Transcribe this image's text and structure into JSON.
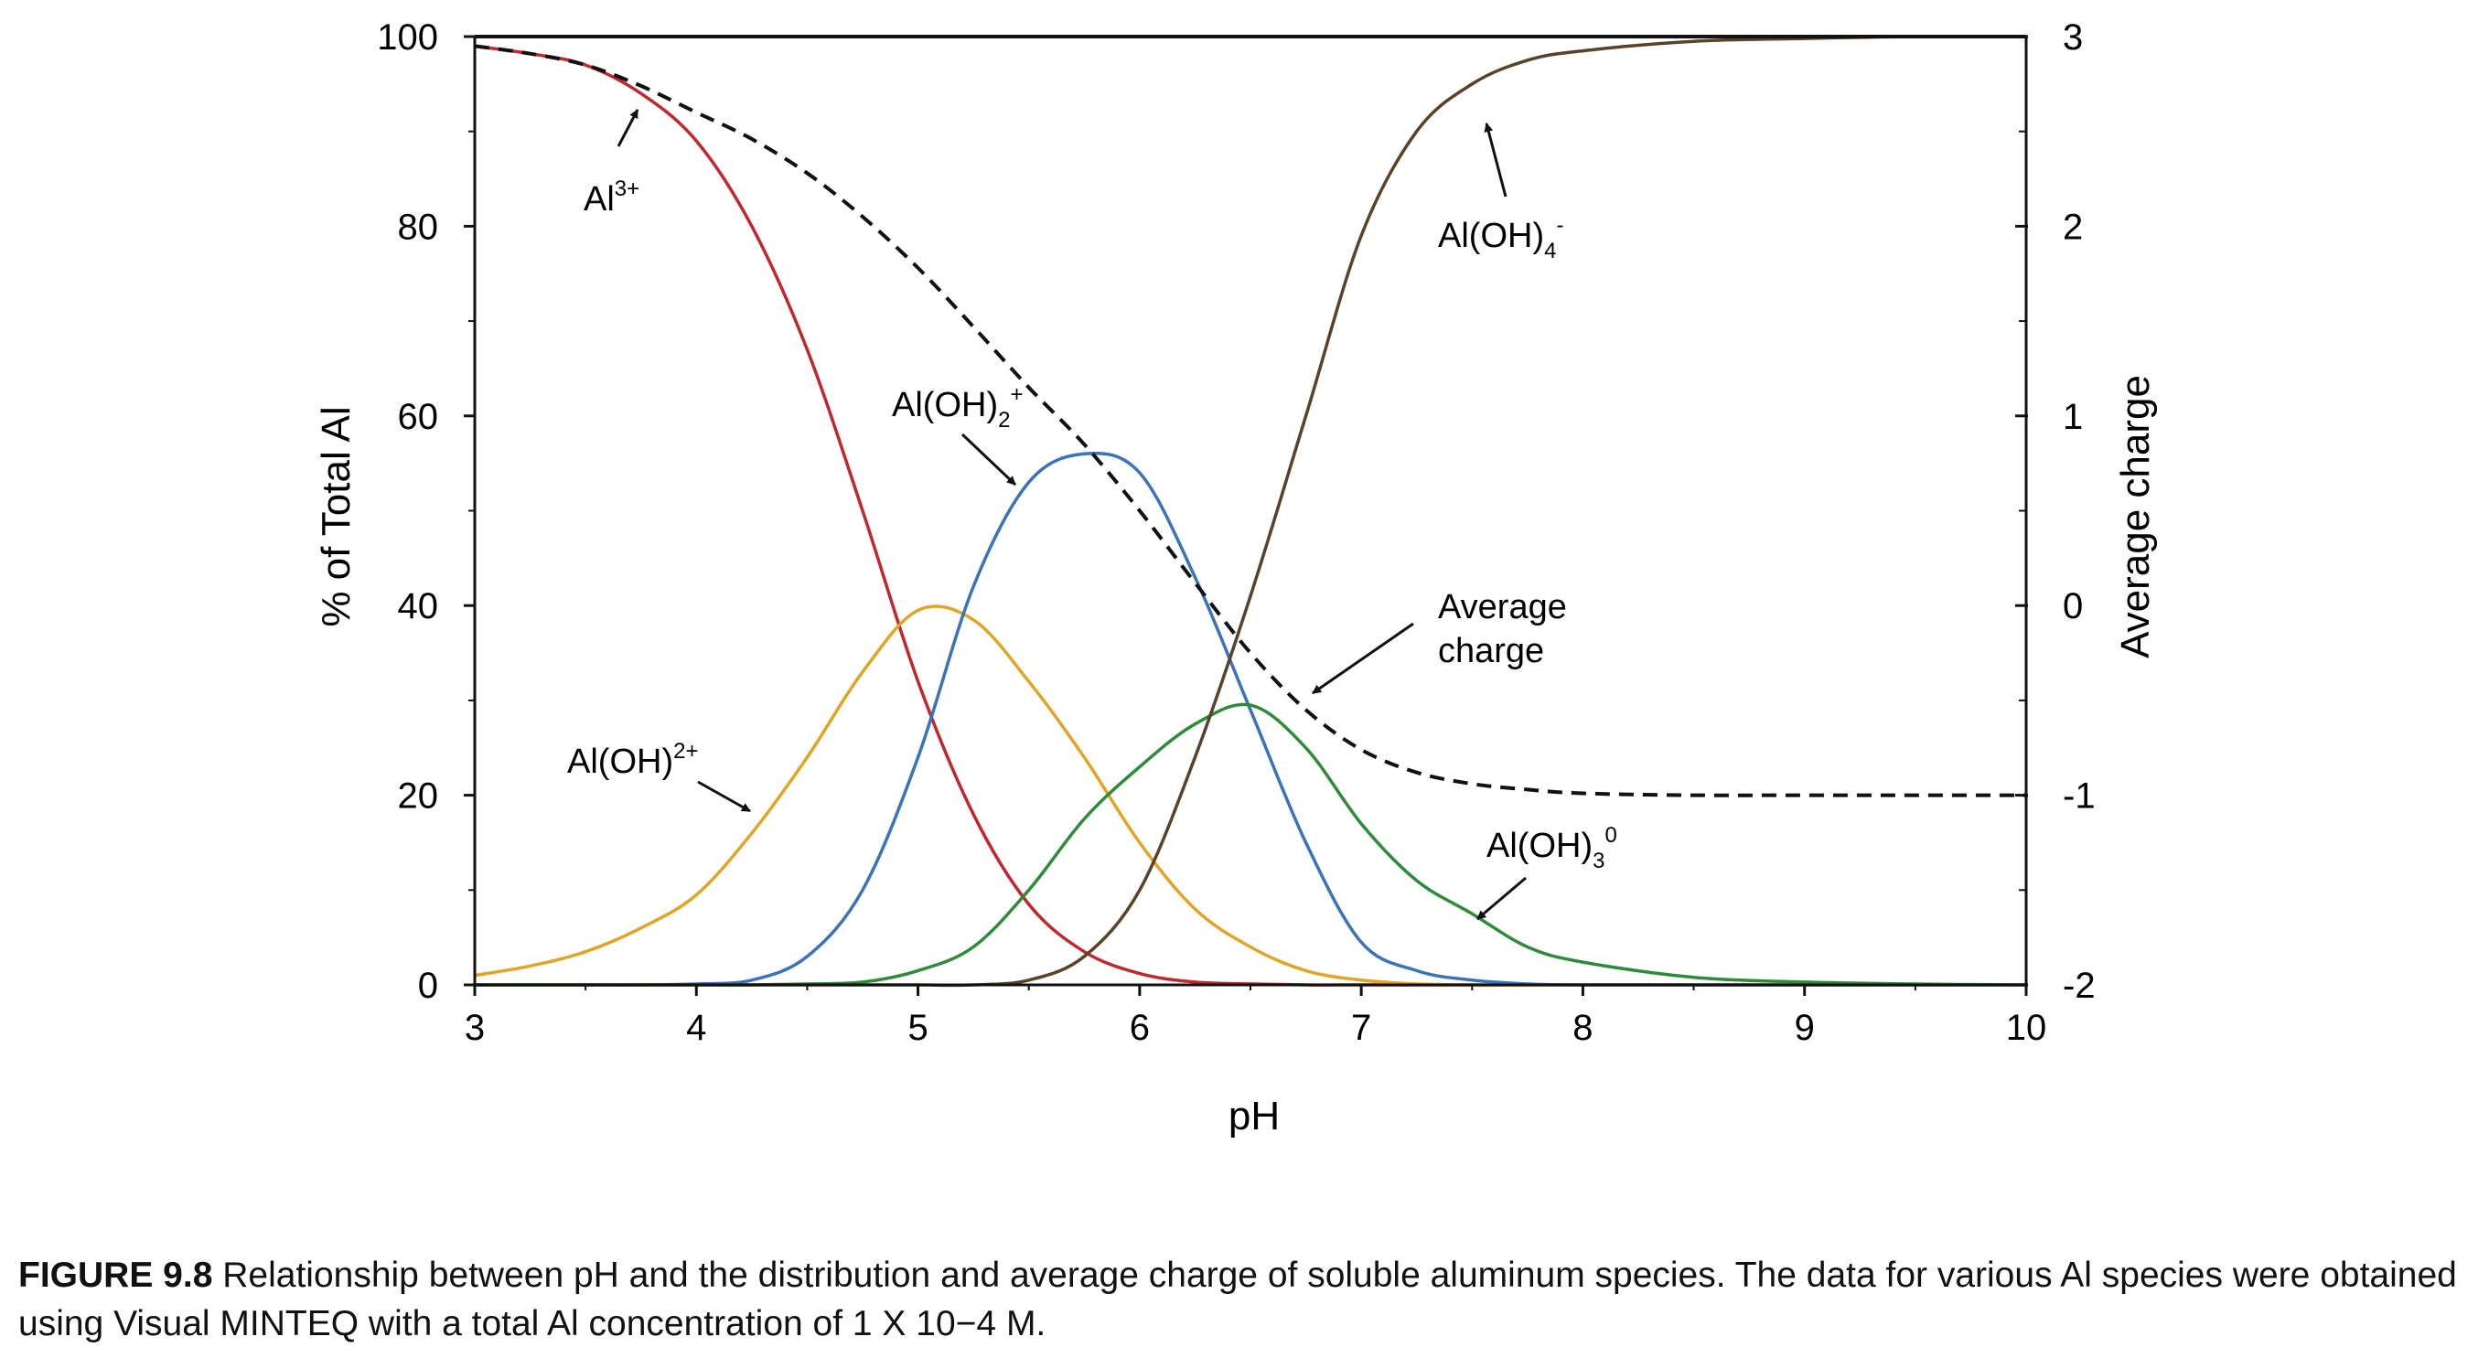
{
  "chart_data": {
    "type": "line",
    "xlabel": "pH",
    "ylabel": "% of Total Al",
    "y2label": "Average charge",
    "xlim": [
      3,
      10
    ],
    "ylim": [
      0,
      100
    ],
    "y2lim": [
      -2,
      3
    ],
    "xticks": [
      "3",
      "4",
      "5",
      "6",
      "7",
      "8",
      "9",
      "10"
    ],
    "yticks": [
      "0",
      "20",
      "40",
      "60",
      "80",
      "100"
    ],
    "y2ticks": [
      "-2",
      "-1",
      "0",
      "1",
      "2",
      "3"
    ],
    "grid": false,
    "legend": "none",
    "x": [
      3.0,
      3.25,
      3.5,
      3.75,
      4.0,
      4.25,
      4.5,
      4.75,
      5.0,
      5.25,
      5.5,
      5.75,
      6.0,
      6.25,
      6.5,
      6.75,
      7.0,
      7.25,
      7.5,
      7.75,
      8.0,
      8.5,
      9.0,
      9.5,
      10.0
    ],
    "series": [
      {
        "name": "Al3+",
        "axis": "left",
        "color": "#c1272d",
        "dash": false,
        "values": [
          99,
          98.2,
          97,
          94,
          89,
          80,
          67,
          50,
          32,
          18,
          8.5,
          3.5,
          1.2,
          0.3,
          0.1,
          0,
          0,
          0,
          0,
          0,
          0,
          0,
          0,
          0,
          0
        ]
      },
      {
        "name": "Al(OH)2+",
        "axis": "left",
        "color": "#e0a526",
        "dash": false,
        "values": [
          1,
          2,
          3.5,
          6,
          9.5,
          16,
          24,
          33,
          39.5,
          38.5,
          32,
          24,
          15,
          8,
          4,
          1.5,
          0.5,
          0.1,
          0,
          0,
          0,
          0,
          0,
          0,
          0
        ]
      },
      {
        "name": "Al(OH)2+ (dihydroxy)",
        "axis": "left",
        "color": "#3b73b9",
        "dash": false,
        "values": [
          0,
          0,
          0,
          0,
          0.1,
          0.5,
          3,
          10,
          24,
          42,
          53,
          56,
          54,
          43,
          29,
          15,
          4.5,
          1.5,
          0.5,
          0.1,
          0,
          0,
          0,
          0,
          0
        ]
      },
      {
        "name": "Al(OH)3 0",
        "axis": "left",
        "color": "#2e8b3a",
        "dash": false,
        "values": [
          0,
          0,
          0,
          0,
          0,
          0,
          0.1,
          0.3,
          1.5,
          4,
          10,
          17.5,
          23,
          27.5,
          29.5,
          25,
          17,
          11,
          7.5,
          4,
          2.4,
          0.8,
          0.3,
          0.1,
          0
        ]
      },
      {
        "name": "Al(OH)4-",
        "axis": "left",
        "color": "#5a4228",
        "dash": false,
        "values": [
          0,
          0,
          0,
          0,
          0,
          0,
          0,
          0,
          0,
          0,
          0.5,
          3,
          10,
          24,
          41,
          60,
          79,
          90,
          95,
          97.5,
          98.5,
          99.5,
          99.8,
          100,
          100
        ]
      },
      {
        "name": "Average charge",
        "axis": "right",
        "color": "#111111",
        "dash": true,
        "values": [
          2.95,
          2.91,
          2.85,
          2.74,
          2.6,
          2.46,
          2.28,
          2.05,
          1.78,
          1.47,
          1.15,
          0.85,
          0.5,
          0.12,
          -0.25,
          -0.55,
          -0.76,
          -0.88,
          -0.94,
          -0.97,
          -0.99,
          -1.0,
          -1.0,
          -1.0,
          -1.0
        ]
      }
    ],
    "annotations": [
      {
        "base": "Al",
        "sup": "3+",
        "sub": ""
      },
      {
        "base": "Al(OH)",
        "sup": "2+",
        "sub": ""
      },
      {
        "base": "Al(OH)",
        "sub": "2",
        "sup": "+"
      },
      {
        "base": "Al(OH)",
        "sub": "4",
        "sup": "-"
      },
      {
        "base": "Al(OH)",
        "sub": "3",
        "sup": "0"
      },
      {
        "line1": "Average",
        "line2": "charge"
      }
    ]
  },
  "caption": {
    "label": "FIGURE 9.8",
    "text": "Relationship between pH and the distribution and average charge of soluble aluminum species. The data for various Al species were obtained using Visual MINTEQ with a total Al concentration of 1 X 10−4 M."
  }
}
